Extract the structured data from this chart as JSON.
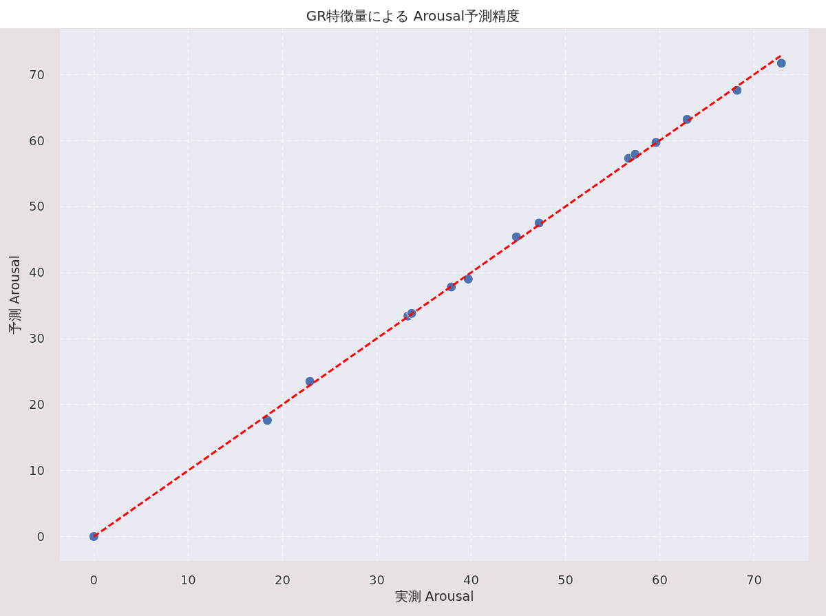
{
  "chart_data": {
    "type": "scatter",
    "title": "GR特徴量による Arousal予測精度",
    "xlabel": "実測 Arousal",
    "ylabel": "予測 Arousal",
    "xlim": [
      -3.6,
      75.8
    ],
    "ylim": [
      -3.7,
      76.9
    ],
    "xticks": [
      0,
      10,
      20,
      30,
      40,
      50,
      60,
      70
    ],
    "yticks": [
      0,
      10,
      20,
      30,
      40,
      50,
      60,
      70
    ],
    "grid": true,
    "marker": "circle",
    "series": [
      {
        "color": "#4c72b0",
        "x": [
          0,
          18.4,
          22.9,
          33.3,
          33.7,
          37.9,
          39.7,
          44.8,
          47.2,
          56.7,
          57.4,
          59.6,
          62.9,
          68.2,
          72.9
        ],
        "values": [
          0,
          17.6,
          23.5,
          33.4,
          33.8,
          37.8,
          39.0,
          45.4,
          47.5,
          57.3,
          57.9,
          59.7,
          63.2,
          67.6,
          71.7
        ]
      },
      {
        "type": "line",
        "color": "#ff0000",
        "line_style": "dashed",
        "marker": "none",
        "x": [
          0,
          72.9
        ],
        "values": [
          0,
          72.9
        ]
      }
    ]
  }
}
